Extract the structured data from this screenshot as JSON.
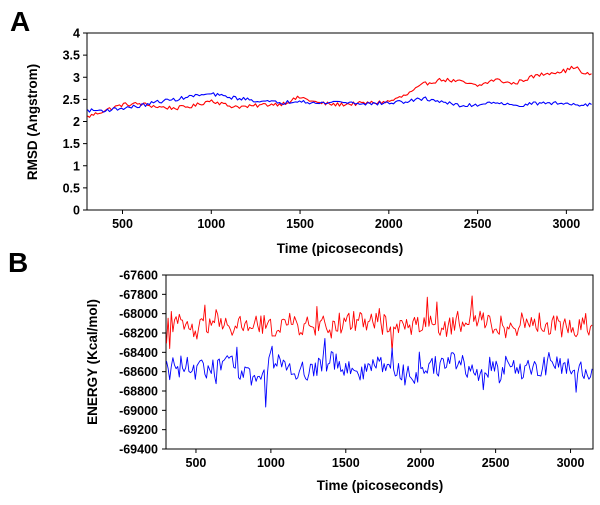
{
  "panels": [
    {
      "letter": "A"
    },
    {
      "letter": "B"
    }
  ],
  "colors": {
    "series_red": "#ff0000",
    "series_blue": "#0000ff",
    "axes": "#000000"
  },
  "chart_data": [
    {
      "type": "line",
      "panel": "A",
      "title": "",
      "xlabel": "Time (picoseconds)",
      "ylabel": "RMSD (Angstrom)",
      "xlim": [
        300,
        3150
      ],
      "ylim": [
        0,
        4
      ],
      "xticks": [
        500,
        1000,
        1500,
        2000,
        2500,
        3000
      ],
      "yticks": [
        0,
        0.5,
        1,
        1.5,
        2,
        2.5,
        3,
        3.5,
        4
      ],
      "series": [
        {
          "color": "#ff0000",
          "x": [
            300,
            400,
            500,
            600,
            700,
            800,
            900,
            1000,
            1100,
            1200,
            1300,
            1400,
            1500,
            1600,
            1700,
            1800,
            1900,
            2000,
            2100,
            2200,
            2300,
            2400,
            2500,
            2600,
            2700,
            2800,
            2900,
            3000,
            3050,
            3100,
            3150
          ],
          "y": [
            2.1,
            2.25,
            2.38,
            2.4,
            2.33,
            2.3,
            2.35,
            2.48,
            2.35,
            2.33,
            2.38,
            2.4,
            2.55,
            2.42,
            2.38,
            2.4,
            2.42,
            2.45,
            2.6,
            2.85,
            2.95,
            2.9,
            2.8,
            2.95,
            2.85,
            3.0,
            3.1,
            3.15,
            3.25,
            3.05,
            3.1
          ]
        },
        {
          "color": "#0000ff",
          "x": [
            300,
            400,
            500,
            600,
            700,
            800,
            900,
            1000,
            1100,
            1200,
            1300,
            1400,
            1500,
            1600,
            1700,
            1800,
            1900,
            2000,
            2100,
            2200,
            2300,
            2400,
            2500,
            2600,
            2700,
            2800,
            2900,
            3000,
            3100,
            3150
          ],
          "y": [
            2.25,
            2.25,
            2.3,
            2.35,
            2.45,
            2.5,
            2.58,
            2.62,
            2.55,
            2.5,
            2.45,
            2.42,
            2.48,
            2.4,
            2.45,
            2.42,
            2.4,
            2.42,
            2.45,
            2.52,
            2.45,
            2.35,
            2.38,
            2.45,
            2.35,
            2.4,
            2.42,
            2.4,
            2.38,
            2.4
          ]
        }
      ]
    },
    {
      "type": "line",
      "panel": "B",
      "title": "",
      "xlabel": "Time (picoseconds)",
      "ylabel": "ENERGY (Kcal/mol)",
      "xlim": [
        300,
        3150
      ],
      "ylim": [
        -69400,
        -67600
      ],
      "xticks": [
        500,
        1000,
        1500,
        2000,
        2500,
        3000
      ],
      "yticks": [
        -67600,
        -67800,
        -68000,
        -68200,
        -68400,
        -68600,
        -68800,
        -69000,
        -69200,
        -69400
      ],
      "series": [
        {
          "color": "#ff0000",
          "x": [
            300,
            400,
            500,
            600,
            700,
            800,
            900,
            1000,
            1100,
            1200,
            1300,
            1400,
            1500,
            1600,
            1700,
            1800,
            1900,
            2000,
            2100,
            2200,
            2300,
            2400,
            2500,
            2600,
            2700,
            2800,
            2900,
            3000,
            3100,
            3150
          ],
          "y": [
            -68150,
            -68100,
            -68200,
            -68080,
            -68150,
            -68120,
            -68100,
            -68150,
            -68100,
            -68120,
            -68150,
            -68100,
            -68100,
            -68050,
            -68100,
            -68120,
            -68150,
            -68080,
            -68100,
            -68150,
            -68100,
            -68050,
            -68120,
            -68150,
            -68080,
            -68100,
            -68120,
            -68150,
            -68100,
            -68150
          ]
        },
        {
          "color": "#0000ff",
          "x": [
            300,
            400,
            500,
            600,
            700,
            800,
            900,
            1000,
            1100,
            1200,
            1300,
            1400,
            1500,
            1600,
            1700,
            1800,
            1900,
            2000,
            2100,
            2200,
            2300,
            2400,
            2500,
            2600,
            2700,
            2800,
            2900,
            3000,
            3100,
            3150
          ],
          "y": [
            -68550,
            -68500,
            -68600,
            -68550,
            -68500,
            -68600,
            -68650,
            -68550,
            -68500,
            -68600,
            -68550,
            -68500,
            -68550,
            -68600,
            -68500,
            -68550,
            -68650,
            -68600,
            -68550,
            -68500,
            -68550,
            -68600,
            -68500,
            -68550,
            -68600,
            -68550,
            -68500,
            -68550,
            -68600,
            -68550
          ]
        }
      ]
    }
  ]
}
